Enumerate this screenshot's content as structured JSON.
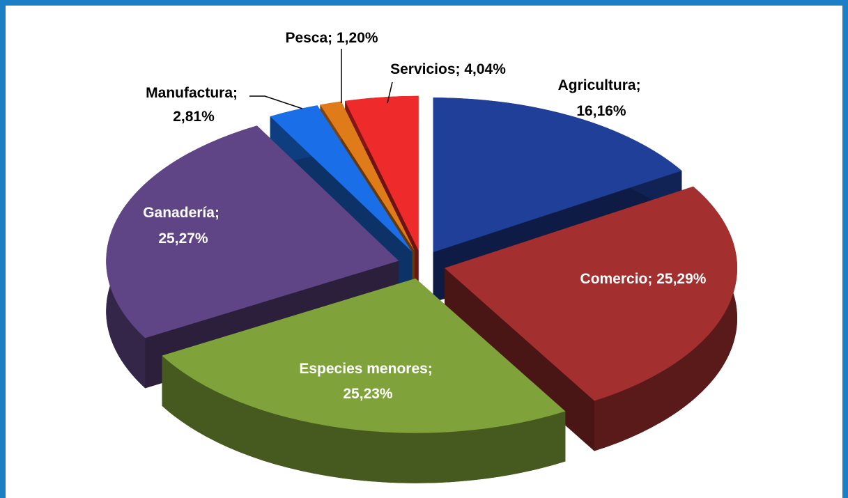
{
  "chart_data": {
    "type": "pie",
    "categories": [
      "Agricultura",
      "Comercio",
      "Especies menores",
      "Ganadería",
      "Manufactura",
      "Pesca",
      "Servicios"
    ],
    "values": [
      16.16,
      25.29,
      25.23,
      25.27,
      2.81,
      1.2,
      4.04
    ],
    "value_labels": [
      "16,16%",
      "25,29%",
      "25,23%",
      "25,27%",
      "2,81%",
      "1,20%",
      "4,04%"
    ],
    "separator": "; ",
    "colors": [
      "#1f3f99",
      "#a32f2f",
      "#7fa33a",
      "#5f4585",
      "#1a6fe8",
      "#e07b1a",
      "#ef2a2a"
    ]
  }
}
